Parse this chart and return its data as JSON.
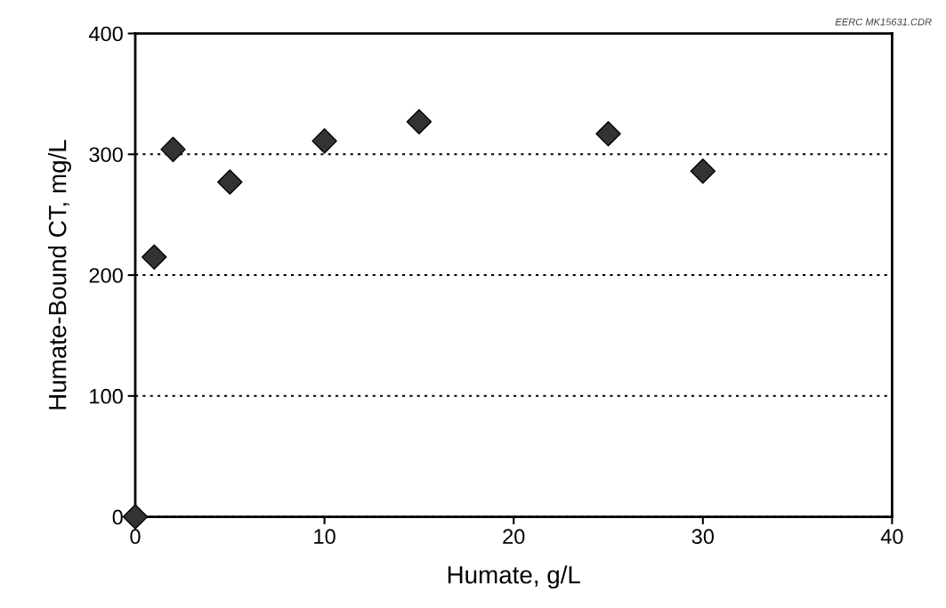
{
  "chart_data": {
    "type": "scatter",
    "xlabel": "Humate, g/L",
    "ylabel": "Humate-Bound CT, mg/L",
    "annotations": [
      "EERC MK15631.CDR"
    ],
    "x": [
      0,
      1,
      2,
      5,
      10,
      15,
      25,
      30
    ],
    "series": [
      {
        "color": "#333333",
        "values": [
          0,
          215,
          304,
          277,
          311,
          327,
          317,
          286
        ]
      }
    ],
    "xlim": [
      0,
      40
    ],
    "xticks": [
      0,
      10,
      20,
      30,
      40
    ],
    "ylim": [
      0,
      400
    ],
    "yticks": [
      0,
      100,
      200,
      300,
      400
    ],
    "grid": "y",
    "marker": "diamond",
    "legend": false
  }
}
